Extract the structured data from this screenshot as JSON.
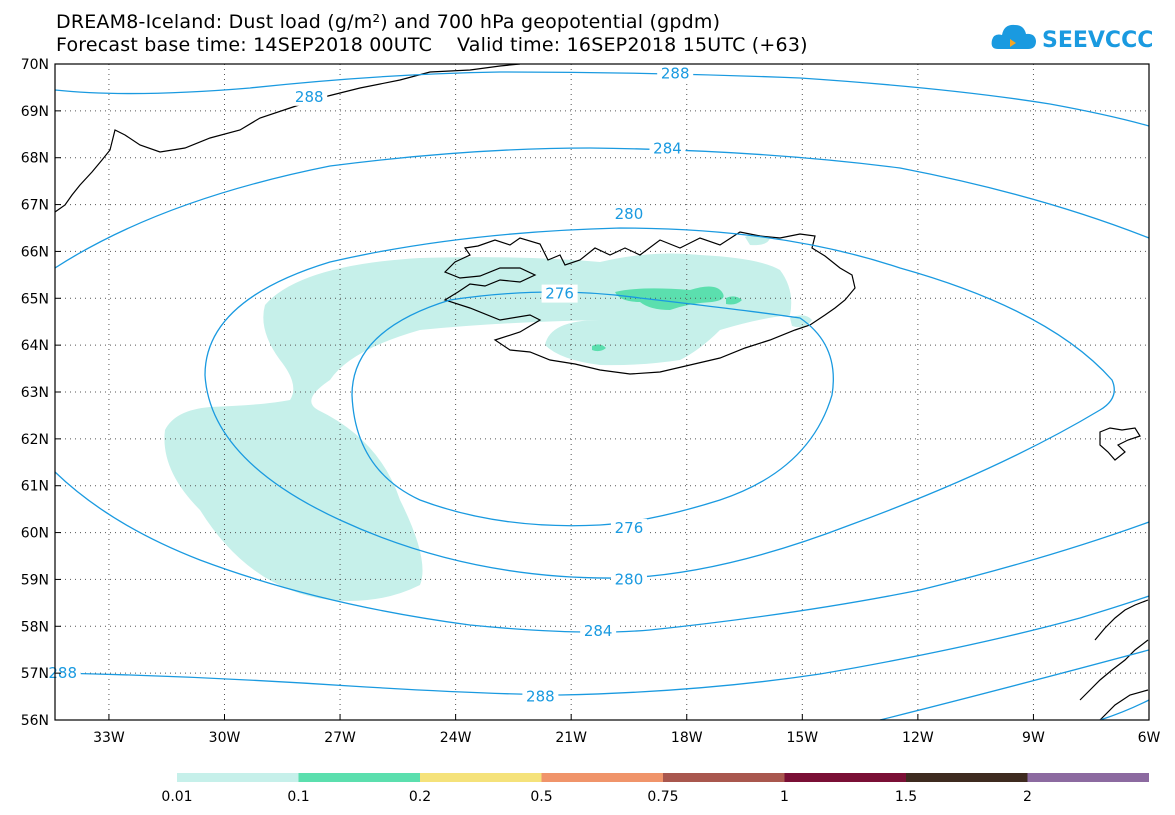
{
  "title": {
    "line1": "DREAM8-Iceland: Dust load (g/m²) and 700 hPa geopotential (gpdm)",
    "line2": "Forecast base time: 14SEP2018 00UTC    Valid time: 16SEP2018 15UTC (+63)"
  },
  "logo": {
    "text": "SEEVCCC",
    "icon": "cloud-logo-icon"
  },
  "colors": {
    "contour": "#1a9ae0",
    "dust_light": "#c6f0ea",
    "dust_medium": "#5bdfae",
    "coast": "#000000"
  },
  "chart_data": {
    "type": "heatmap",
    "title": "DREAM8-Iceland: Dust load (g/m²) and 700 hPa geopotential (gpdm)",
    "x_axis": {
      "range": [
        -34.4,
        -6
      ],
      "ticks": [
        "33W",
        "30W",
        "27W",
        "24W",
        "21W",
        "18W",
        "15W",
        "12W",
        "9W",
        "6W"
      ]
    },
    "y_axis": {
      "range": [
        56,
        70
      ],
      "ticks": [
        "56N",
        "57N",
        "58N",
        "59N",
        "60N",
        "61N",
        "62N",
        "63N",
        "64N",
        "65N",
        "66N",
        "67N",
        "68N",
        "69N",
        "70N"
      ]
    },
    "grid": true,
    "contours": {
      "variable": "700 hPa geopotential (gpdm)",
      "levels": [
        {
          "value": 276,
          "label_text": "276",
          "label_positions": [
            [
              -21.3,
              65.1
            ],
            [
              -19.5,
              60.1
            ]
          ]
        },
        {
          "value": 280,
          "label_text": "280",
          "label_positions": [
            [
              -19.5,
              66.8
            ],
            [
              -19.5,
              59.0
            ]
          ]
        },
        {
          "value": 284,
          "label_text": "284",
          "label_positions": [
            [
              -18.5,
              68.2
            ],
            [
              -20.3,
              57.9
            ]
          ]
        },
        {
          "value": 288,
          "label_text": "288",
          "label_positions": [
            [
              -27.8,
              69.3
            ],
            [
              -18.3,
              69.8
            ],
            [
              -21.8,
              56.5
            ],
            [
              -34.2,
              57.0
            ]
          ]
        }
      ]
    },
    "shading": {
      "variable": "Dust load (g/m²)",
      "colorbar": {
        "levels": [
          "0.01",
          "0.1",
          "0.2",
          "0.5",
          "0.75",
          "1",
          "1.5",
          "2"
        ],
        "colors": [
          "#c6f0ea",
          "#5bdfae",
          "#f5e27a",
          "#f0946a",
          "#a9574e",
          "#7a0f35",
          "#3e2a1f",
          "#8c6aa0"
        ]
      }
    }
  }
}
